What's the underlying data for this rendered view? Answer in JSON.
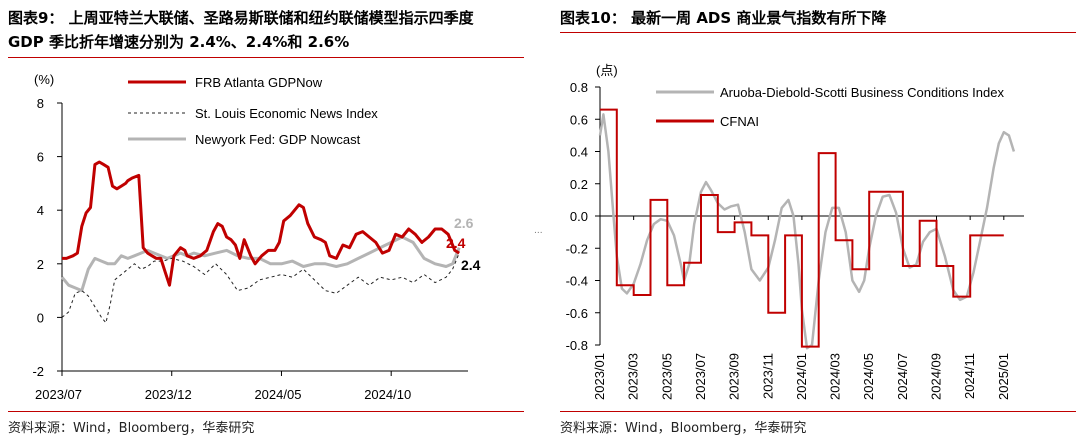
{
  "colors": {
    "red": "#c00000",
    "gray": "#b4b4b4",
    "dashed": "#222222",
    "axis": "#000000"
  },
  "panels": {
    "left": {
      "title_line1": "图表9： 上周亚特兰大联储、圣路易斯联储和纽约联储模型指示四季度",
      "title_line2": "GDP 季比折年增速分别为 2.4%、2.4%和 2.6%",
      "source": "资料来源：Wind，Bloomberg，华泰研究"
    },
    "right": {
      "title": "图表10： 最新一周 ADS 商业景气指数有所下降",
      "source": "资料来源：Wind，Bloomberg，华泰研究"
    }
  },
  "divider_mark": "...",
  "chart_data": [
    {
      "type": "line",
      "title": "",
      "ylabel": "(%)",
      "xlabel": "",
      "ylim": [
        -2,
        8
      ],
      "yticks": [
        -2,
        0,
        2,
        4,
        6,
        8
      ],
      "xlim": [
        0,
        18.5
      ],
      "xticks": [
        {
          "x": 0,
          "label": "2023/07"
        },
        {
          "x": 5,
          "label": "2023/12"
        },
        {
          "x": 10,
          "label": "2024/05"
        },
        {
          "x": 15,
          "label": "2024/10"
        }
      ],
      "legend_position": "top",
      "series": [
        {
          "name": "FRB Atlanta GDPNow",
          "style": "solid-red",
          "end_label": "2.4",
          "x": [
            0,
            0.2,
            0.5,
            0.7,
            0.9,
            1.1,
            1.3,
            1.5,
            1.7,
            1.9,
            2.1,
            2.3,
            2.5,
            2.7,
            2.9,
            3.0,
            3.2,
            3.5,
            3.7,
            3.9,
            4.1,
            4.3,
            4.5,
            4.7,
            4.9,
            5.1,
            5.4,
            5.6,
            5.7,
            6.0,
            6.3,
            6.6,
            6.9,
            7.1,
            7.3,
            7.5,
            7.7,
            7.9,
            8.1,
            8.3,
            8.6,
            8.8,
            9.1,
            9.4,
            9.7,
            9.9,
            10.1,
            10.4,
            10.6,
            10.8,
            11.0,
            11.2,
            11.5,
            11.8,
            12.0,
            12.2,
            12.5,
            12.8,
            13.1,
            13.4,
            13.7,
            14.0,
            14.3,
            14.6,
            14.9,
            15.2,
            15.5,
            15.8,
            16.1,
            16.4,
            16.7,
            17.0,
            17.3,
            17.6,
            17.9,
            18.1
          ],
          "y": [
            2.2,
            2.2,
            2.3,
            2.4,
            3.4,
            3.9,
            4.1,
            5.7,
            5.8,
            5.7,
            5.6,
            4.9,
            4.8,
            4.9,
            5.0,
            5.1,
            5.2,
            5.3,
            2.6,
            2.4,
            2.3,
            2.2,
            2.2,
            1.7,
            1.2,
            2.3,
            2.6,
            2.5,
            2.3,
            2.2,
            2.3,
            2.5,
            3.2,
            3.5,
            3.4,
            3.0,
            2.9,
            2.7,
            2.2,
            2.9,
            2.3,
            2.0,
            2.3,
            2.5,
            2.5,
            2.8,
            3.6,
            3.8,
            4.0,
            4.2,
            4.1,
            3.5,
            3.0,
            2.9,
            2.8,
            2.3,
            2.2,
            2.7,
            2.6,
            3.1,
            3.2,
            3.0,
            2.8,
            2.4,
            2.5,
            3.1,
            3.0,
            3.3,
            3.1,
            2.8,
            3.0,
            3.3,
            3.3,
            3.1,
            2.5,
            2.4
          ]
        },
        {
          "name": "St. Louis Economic News Index",
          "style": "dashed-black",
          "end_label": "2.4",
          "x": [
            0,
            0.3,
            0.6,
            0.9,
            1.2,
            1.5,
            1.8,
            2.0,
            2.2,
            2.4,
            2.7,
            3.0,
            3.3,
            3.6,
            3.9,
            4.2,
            4.6,
            5.0,
            5.5,
            6.0,
            6.5,
            7.0,
            7.5,
            8.0,
            8.5,
            9.0,
            9.5,
            10.0,
            10.5,
            11.0,
            11.5,
            12.0,
            12.5,
            13.0,
            13.5,
            14.0,
            14.5,
            15.0,
            15.5,
            16.0,
            16.5,
            17.0,
            17.5,
            17.8,
            18.1
          ],
          "y": [
            0.0,
            0.2,
            0.9,
            1.0,
            0.8,
            0.4,
            0.0,
            -0.2,
            0.5,
            1.4,
            1.6,
            1.8,
            2.0,
            1.8,
            1.9,
            2.1,
            2.1,
            2.2,
            2.1,
            1.9,
            1.6,
            2.0,
            1.6,
            1.0,
            1.1,
            1.4,
            1.5,
            1.6,
            1.5,
            1.8,
            1.4,
            1.0,
            0.9,
            1.2,
            1.5,
            1.2,
            1.5,
            1.4,
            1.5,
            1.3,
            1.6,
            1.3,
            1.5,
            1.8,
            2.4
          ]
        },
        {
          "name": "Newyork Fed: GDP Nowcast",
          "style": "solid-gray",
          "end_label": "2.6",
          "x": [
            0,
            0.3,
            0.6,
            0.9,
            1.2,
            1.5,
            1.8,
            2.1,
            2.4,
            2.7,
            3.0,
            3.3,
            3.6,
            3.9,
            4.2,
            4.5,
            4.8,
            5.1,
            5.4,
            5.7,
            6.0,
            6.5,
            7.0,
            7.5,
            8.0,
            8.5,
            9.0,
            9.5,
            10.0,
            10.5,
            11.0,
            11.5,
            12.0,
            12.5,
            13.0,
            13.5,
            14.0,
            14.5,
            15.0,
            15.5,
            16.0,
            16.5,
            17.0,
            17.5,
            17.8,
            18.1
          ],
          "y": [
            1.5,
            1.2,
            1.1,
            1.0,
            1.8,
            2.2,
            2.1,
            2.0,
            2.0,
            2.3,
            2.2,
            2.3,
            2.4,
            2.5,
            2.4,
            2.3,
            2.2,
            2.3,
            2.4,
            2.3,
            2.4,
            2.3,
            2.4,
            2.5,
            2.3,
            2.2,
            2.2,
            2.0,
            2.0,
            2.1,
            1.9,
            2.0,
            2.0,
            1.9,
            2.0,
            2.2,
            2.4,
            2.6,
            2.8,
            3.0,
            2.8,
            2.2,
            2.0,
            1.9,
            2.0,
            2.6
          ]
        }
      ]
    },
    {
      "type": "line",
      "title": "",
      "ylabel": "(点)",
      "xlabel": "",
      "ylim": [
        -0.8,
        0.8
      ],
      "yticks": [
        -0.8,
        -0.6,
        -0.4,
        -0.2,
        0.0,
        0.2,
        0.4,
        0.6,
        0.8
      ],
      "ytick_labels": [
        "-0.8",
        "-0.6",
        "-0.4",
        "-0.2",
        "0.0",
        "0.2",
        "0.4",
        "0.6",
        "0.8"
      ],
      "xlim": [
        0,
        25.2
      ],
      "xticks": [
        {
          "x": 0,
          "label": "2023/01"
        },
        {
          "x": 2,
          "label": "2023/03"
        },
        {
          "x": 4,
          "label": "2023/05"
        },
        {
          "x": 6,
          "label": "2023/07"
        },
        {
          "x": 8,
          "label": "2023/09"
        },
        {
          "x": 10,
          "label": "2023/11"
        },
        {
          "x": 12,
          "label": "2024/01"
        },
        {
          "x": 14,
          "label": "2024/03"
        },
        {
          "x": 16,
          "label": "2024/05"
        },
        {
          "x": 18,
          "label": "2024/07"
        },
        {
          "x": 20,
          "label": "2024/09"
        },
        {
          "x": 22,
          "label": "2024/11"
        },
        {
          "x": 24,
          "label": "2025/01"
        }
      ],
      "legend_position": "top",
      "series": [
        {
          "name": "Aruoba-Diebold-Scotti Business Conditions Index",
          "style": "solid-gray",
          "x": [
            0,
            0.2,
            0.5,
            0.8,
            1.0,
            1.3,
            1.6,
            2.0,
            2.4,
            2.8,
            3.2,
            3.6,
            4.0,
            4.4,
            4.8,
            5.0,
            5.3,
            5.6,
            6.0,
            6.3,
            6.6,
            7.0,
            7.4,
            7.8,
            8.2,
            8.6,
            9.0,
            9.5,
            10.0,
            10.4,
            10.8,
            11.2,
            11.5,
            11.8,
            12.0,
            12.3,
            12.6,
            13.0,
            13.4,
            13.8,
            14.2,
            14.6,
            15.0,
            15.4,
            15.7,
            16.0,
            16.4,
            16.8,
            17.2,
            17.6,
            18.0,
            18.4,
            18.8,
            19.2,
            19.6,
            20.0,
            20.5,
            21.0,
            21.4,
            21.8,
            22.2,
            22.6,
            23.0,
            23.4,
            23.7,
            24.0,
            24.3,
            24.6
          ],
          "y": [
            0.5,
            0.63,
            0.4,
            0.0,
            -0.25,
            -0.45,
            -0.48,
            -0.42,
            -0.3,
            -0.15,
            -0.05,
            -0.02,
            -0.03,
            -0.12,
            -0.3,
            -0.4,
            -0.3,
            -0.05,
            0.15,
            0.21,
            0.16,
            0.08,
            0.04,
            0.06,
            0.07,
            -0.1,
            -0.33,
            -0.4,
            -0.32,
            -0.15,
            0.05,
            0.1,
            0.0,
            -0.3,
            -0.58,
            -0.82,
            -0.8,
            -0.4,
            -0.1,
            0.05,
            0.05,
            -0.1,
            -0.4,
            -0.47,
            -0.4,
            -0.2,
            0.0,
            0.12,
            0.13,
            0.02,
            -0.2,
            -0.32,
            -0.3,
            -0.16,
            -0.1,
            -0.08,
            -0.25,
            -0.46,
            -0.52,
            -0.5,
            -0.35,
            -0.15,
            0.05,
            0.3,
            0.45,
            0.52,
            0.5,
            0.4
          ]
        },
        {
          "name": "CFNAI",
          "style": "step-red",
          "values": [
            0.66,
            -0.43,
            -0.49,
            0.1,
            -0.43,
            -0.29,
            0.13,
            -0.1,
            -0.04,
            -0.12,
            -0.6,
            -0.12,
            -0.81,
            0.39,
            -0.15,
            -0.33,
            0.15,
            0.15,
            -0.31,
            -0.03,
            -0.31,
            -0.5,
            -0.12,
            -0.12
          ]
        }
      ]
    }
  ]
}
